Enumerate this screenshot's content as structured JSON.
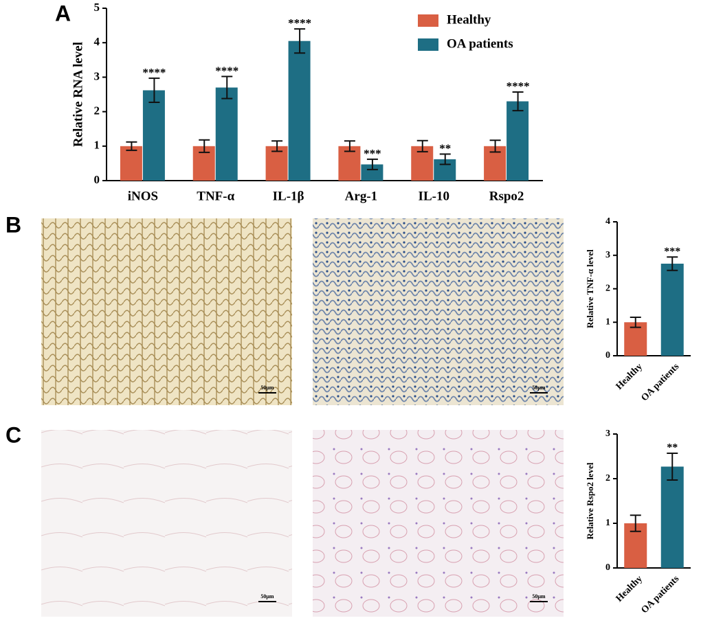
{
  "panel_labels": [
    "A",
    "B",
    "C"
  ],
  "chart_data": [
    {
      "type": "bar",
      "ylabel": "Relative RNA level",
      "categories": [
        "iNOS",
        "TNF-α",
        "IL-1β",
        "Arg-1",
        "IL-10",
        "Rspo2"
      ],
      "series": [
        {
          "name": "Healthy",
          "color": "#d95f43",
          "values": [
            1,
            1,
            1,
            1,
            1,
            1
          ],
          "errors": [
            0.12,
            0.18,
            0.15,
            0.15,
            0.16,
            0.17
          ]
        },
        {
          "name": "OA patients",
          "color": "#1e6e84",
          "values": [
            2.62,
            2.7,
            4.05,
            0.47,
            0.62,
            2.3
          ],
          "errors": [
            0.35,
            0.32,
            0.35,
            0.15,
            0.15,
            0.27
          ],
          "significance": [
            "****",
            "****",
            "****",
            "***",
            "**",
            "****"
          ]
        }
      ],
      "ylim": [
        0,
        5
      ],
      "yticks": [
        0,
        1,
        2,
        3,
        4,
        5
      ],
      "legend": "upper right"
    },
    {
      "type": "bar",
      "ylabel": "Relative TNF-α level",
      "categories": [
        "Healthy",
        "OA patients"
      ],
      "values": [
        1,
        2.75
      ],
      "errors": [
        0.15,
        0.2
      ],
      "colors": [
        "#d95f43",
        "#1e6e84"
      ],
      "significance": [
        null,
        "***"
      ],
      "ylim": [
        0,
        4
      ],
      "yticks": [
        0,
        1,
        2,
        3,
        4
      ]
    },
    {
      "type": "bar",
      "ylabel": "Relative Rspo2 level",
      "categories": [
        "Healthy",
        "OA patients"
      ],
      "values": [
        1,
        2.27
      ],
      "errors": [
        0.18,
        0.3
      ],
      "colors": [
        "#d95f43",
        "#1e6e84"
      ],
      "significance": [
        null,
        "**"
      ],
      "ylim": [
        0,
        3
      ],
      "yticks": [
        0,
        1,
        2,
        3
      ]
    }
  ],
  "scale_bars": [
    "50μm",
    "50μm",
    "50μm",
    "50μm"
  ]
}
